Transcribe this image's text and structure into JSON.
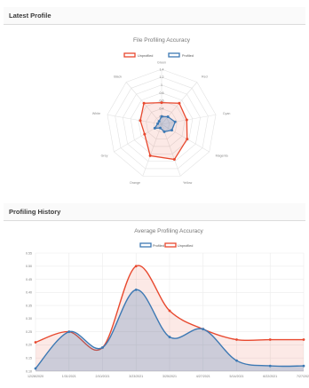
{
  "sections": {
    "latest_profile": "Latest Profile",
    "profiling_history": "Profiling History"
  },
  "colors": {
    "unprofiled": "#e8492f",
    "profiled": "#3d79b4",
    "unprofiled_fill": "rgba(232,73,47,0.12)",
    "profiled_fill": "rgba(61,121,180,0.25)"
  },
  "chart_data": [
    {
      "type": "radar",
      "title": "File Profiling Accuracy",
      "legend": [
        "Unprofiled",
        "Profiled"
      ],
      "legend_position": "top",
      "axes": [
        "Green",
        "Red",
        "Cyan",
        "Magenta",
        "Yellow",
        "Orange",
        "Grey",
        "White",
        "Black"
      ],
      "scale": {
        "min": 0,
        "max": 1.4,
        "ticks": [
          "0.2",
          "0.4",
          "0.6",
          "0.8",
          "1",
          "1.2",
          "1.4"
        ]
      },
      "series": [
        {
          "name": "Unprofiled",
          "values": [
            0.55,
            0.7,
            0.65,
            0.75,
            0.95,
            0.85,
            0.5,
            0.55,
            0.7
          ]
        },
        {
          "name": "Profiled",
          "values": [
            0.2,
            0.25,
            0.35,
            0.3,
            0.2,
            0.1,
            0.2,
            0.1,
            0.1
          ]
        }
      ]
    },
    {
      "type": "line",
      "title": "Average Profiling Accuracy",
      "legend": [
        "Profiled",
        "Unprofiled"
      ],
      "legend_position": "top",
      "x": [
        "12/28/2020",
        "1/31/2021",
        "2/10/2021",
        "3/23/2021",
        "3/25/2021",
        "4/27/2021",
        "5/14/2021",
        "6/22/2021",
        "7/27/2021"
      ],
      "ylim": [
        0.1,
        0.55
      ],
      "yticks": [
        "0.10",
        "0.15",
        "0.20",
        "0.25",
        "0.30",
        "0.35",
        "0.40",
        "0.45",
        "0.50",
        "0.55"
      ],
      "grid": true,
      "series": [
        {
          "name": "Profiled",
          "values": [
            0.11,
            0.25,
            0.19,
            0.41,
            0.23,
            0.26,
            0.14,
            0.12,
            0.12
          ]
        },
        {
          "name": "Unprofiled",
          "values": [
            0.21,
            0.25,
            0.19,
            0.5,
            0.33,
            0.26,
            0.22,
            0.22,
            0.22
          ]
        }
      ]
    }
  ]
}
